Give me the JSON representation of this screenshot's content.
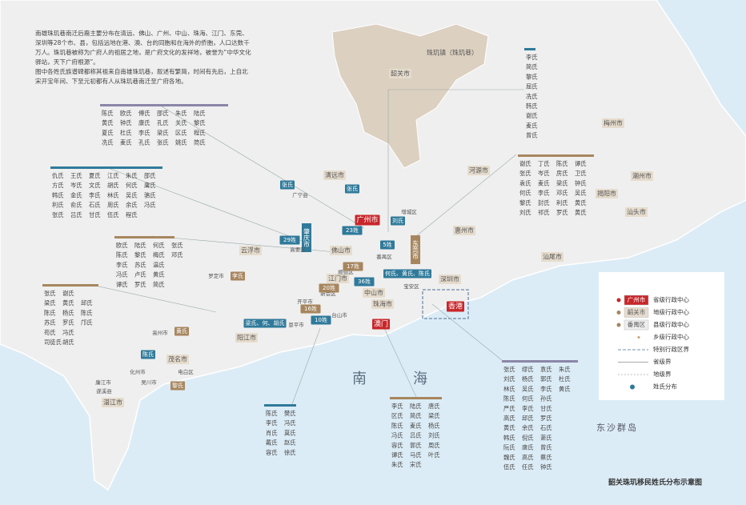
{
  "intro": {
    "paragraphs": [
      "南雄珠玑巷南迁后裔主要分布在清远、佛山、广州、中山、珠海、江门、东莞、深圳等28个市、县，包括远地在港、澳、台的同胞和在海外的侨胞，人口达数千万人。珠玑巷被称为广府人的祖居之地，是广府文化的发祥地，被誉为“中华文化驿站，天下广府根源”。",
      "图中各姓氏族谱碑都称其祖来自南雄珠玑巷，叙述有繁简，时间有先后，上自北宋开宝年间、下至元初都有人从珠玑巷南迁至广府各地。"
    ]
  },
  "places": [
    {
      "label": "韶关市"
    },
    {
      "label": "珠玑镇（珠玑巷）"
    },
    {
      "label": "梅州市"
    },
    {
      "label": "河源市"
    },
    {
      "label": "潮州市"
    },
    {
      "label": "揭阳市"
    },
    {
      "label": "汕头市"
    },
    {
      "label": "汕尾市"
    },
    {
      "label": "惠州市"
    },
    {
      "label": "清远市"
    },
    {
      "label": "广州市"
    },
    {
      "label": "东莞市"
    },
    {
      "label": "深圳市"
    },
    {
      "label": "香港"
    },
    {
      "label": "澳门"
    },
    {
      "label": "中山市"
    },
    {
      "label": "珠海市"
    },
    {
      "label": "江门市"
    },
    {
      "label": "佛山市"
    },
    {
      "label": "肇庆市"
    },
    {
      "label": "云浮市"
    },
    {
      "label": "阳江市"
    },
    {
      "label": "茂名市"
    },
    {
      "label": "湛江市"
    },
    {
      "label": "广宁县"
    },
    {
      "label": "高要区"
    },
    {
      "label": "增城区"
    },
    {
      "label": "番禺区"
    },
    {
      "label": "顺德区"
    },
    {
      "label": "新会区"
    },
    {
      "label": "宝安区"
    },
    {
      "label": "开平市"
    },
    {
      "label": "恩平市"
    },
    {
      "label": "台山市"
    },
    {
      "label": "罗定市"
    },
    {
      "label": "高州市"
    },
    {
      "label": "化州市"
    },
    {
      "label": "电白区"
    },
    {
      "label": "吴川市"
    },
    {
      "label": "廉江市"
    },
    {
      "label": "遂溪县"
    },
    {
      "label": "张氏"
    },
    {
      "label": "张氏"
    },
    {
      "label": "29姓"
    },
    {
      "label": "23姓"
    },
    {
      "label": "刘氏"
    },
    {
      "label": "5姓"
    },
    {
      "label": "17姓"
    },
    {
      "label": "20姓"
    },
    {
      "label": "36姓"
    },
    {
      "label": "何氏、黄氏、陈氏"
    },
    {
      "label": "16姓"
    },
    {
      "label": "10姓"
    },
    {
      "label": "李氏"
    },
    {
      "label": "陈氏"
    },
    {
      "label": "黄氏"
    },
    {
      "label": "黎氏"
    },
    {
      "label": "梁氏、何、胡氏"
    }
  ],
  "groups": [
    {
      "rows": [
        [
          "李氏"
        ],
        [
          "简氏"
        ],
        [
          "黎氏"
        ],
        [
          "屈氏"
        ],
        [
          "冼氏"
        ],
        [
          "韩氏"
        ],
        [
          "谢氏"
        ],
        [
          "麦氏"
        ],
        [
          "曾氏"
        ]
      ]
    },
    {
      "rows": [
        [
          "陈氏",
          "欧氏",
          "傅氏",
          "邵氏",
          "朱氏",
          "陆氏"
        ],
        [
          "黄氏",
          "钟氏",
          "康氏",
          "孔氏",
          "关氏",
          "黎氏"
        ],
        [
          "夏氏",
          "杜氏",
          "李氏",
          "梁氏",
          "区氏",
          "程氏"
        ],
        [
          "冼氏",
          "麦氏",
          "孔氏",
          "张氏",
          "姚氏",
          "简氏"
        ]
      ]
    },
    {
      "rows": [
        [
          "仇氏",
          "王氏",
          "夏氏",
          "江氏",
          "朱氏",
          "邵氏"
        ],
        [
          "方氏",
          "岑氏",
          "文氏",
          "胡氏",
          "何氏",
          "庸氏"
        ],
        [
          "韩氏",
          "金氏",
          "李氏",
          "林氏",
          "吴氏",
          "骆氏"
        ],
        [
          "利氏",
          "俞氏",
          "石氏",
          "周氏",
          "余氏",
          "冯氏"
        ],
        [
          "张氏",
          "吕氏",
          "甘氏",
          "伍氏",
          "程氏"
        ]
      ]
    },
    {
      "rows": [
        [
          "欧氏",
          "陆氏",
          "何氏",
          "张氏"
        ],
        [
          "陈氏",
          "黎氏",
          "梅氏",
          "邓氏"
        ],
        [
          "李氏",
          "苏氏",
          "温氏"
        ],
        [
          "冯氏",
          "卢氏",
          "黄氏"
        ],
        [
          "谭氏",
          "罗氏",
          "简氏"
        ]
      ]
    },
    {
      "rows": [
        [
          "张氏",
          "谢氏"
        ],
        [
          "梁氏",
          "黄氏",
          "邱氏"
        ],
        [
          "陈氏",
          "杨氏",
          "陈氏"
        ],
        [
          "苏氏",
          "罗氏",
          "邝氏"
        ],
        [
          "苟氏",
          "冯氏"
        ],
        [
          "司徒氏",
          "胡氏"
        ]
      ]
    },
    {
      "rows": [
        [
          "谢氏",
          "丁氏",
          "陈氏",
          "谭氏"
        ],
        [
          "张氏",
          "岑氏",
          "房氏",
          "卫氏"
        ],
        [
          "袁氏",
          "麦氏",
          "梁氏",
          "钟氏"
        ],
        [
          "何氏",
          "李氏",
          "邓氏",
          "吴氏"
        ],
        [
          "黎氏",
          "封氏",
          "利氏",
          "黄氏"
        ],
        [
          "刘氏",
          "祁氏",
          "罗氏",
          "黄氏"
        ]
      ]
    },
    {
      "rows": [
        [
          "陈氏",
          "樊氏"
        ],
        [
          "李氏",
          "冯氏"
        ],
        [
          "肖氏",
          "莫氏"
        ],
        [
          "戴氏",
          "赵氏"
        ],
        [
          "容氏",
          "徐氏"
        ]
      ]
    },
    {
      "rows": [
        [
          "李氏",
          "陆氏",
          "唐氏"
        ],
        [
          "区氏",
          "简氏",
          "梁氏"
        ],
        [
          "陈氏",
          "麦氏",
          "杨氏"
        ],
        [
          "冯氏",
          "吕氏",
          "刘氏"
        ],
        [
          "容氏",
          "郭氏",
          "周氏"
        ],
        [
          "谭氏",
          "马氏",
          "叶氏"
        ],
        [
          "朱氏",
          "宋氏"
        ]
      ]
    },
    {
      "rows": [
        [
          "张氏",
          "缪氏",
          "袁氏",
          "朱氏"
        ],
        [
          "刘氏",
          "杨氏",
          "郭氏",
          "杜氏"
        ],
        [
          "林氏",
          "吴氏",
          "李氏",
          "黄氏"
        ],
        [
          "陈氏",
          "何氏",
          "孙氏"
        ],
        [
          "严氏",
          "李氏",
          "甘氏"
        ],
        [
          "高氏",
          "邱氏",
          "罗氏"
        ],
        [
          "黄氏",
          "余氏",
          "石氏"
        ],
        [
          "韩氏",
          "倪氏",
          "萧氏"
        ],
        [
          "阮氏",
          "唐氏",
          "曾氏"
        ],
        [
          "魏氏",
          "高氏",
          "蔡氏"
        ],
        [
          "伍氏",
          "任氏",
          "钟氏"
        ]
      ]
    }
  ],
  "seas": [
    "南",
    "海",
    "东沙群岛"
  ],
  "legend": {
    "items": [
      {
        "sample": "广州市",
        "label": "省级行政中心"
      },
      {
        "sample": "韶关市",
        "label": "地级行政中心"
      },
      {
        "sample": "番禺区",
        "label": "县级行政中心"
      },
      {
        "label": "乡级行政中心"
      },
      {
        "label": "特别行政区界"
      },
      {
        "label": "省级界"
      },
      {
        "label": "地级界"
      },
      {
        "label": "姓氏分布"
      }
    ]
  },
  "title": "韶关珠玑移民姓氏分布示意图"
}
